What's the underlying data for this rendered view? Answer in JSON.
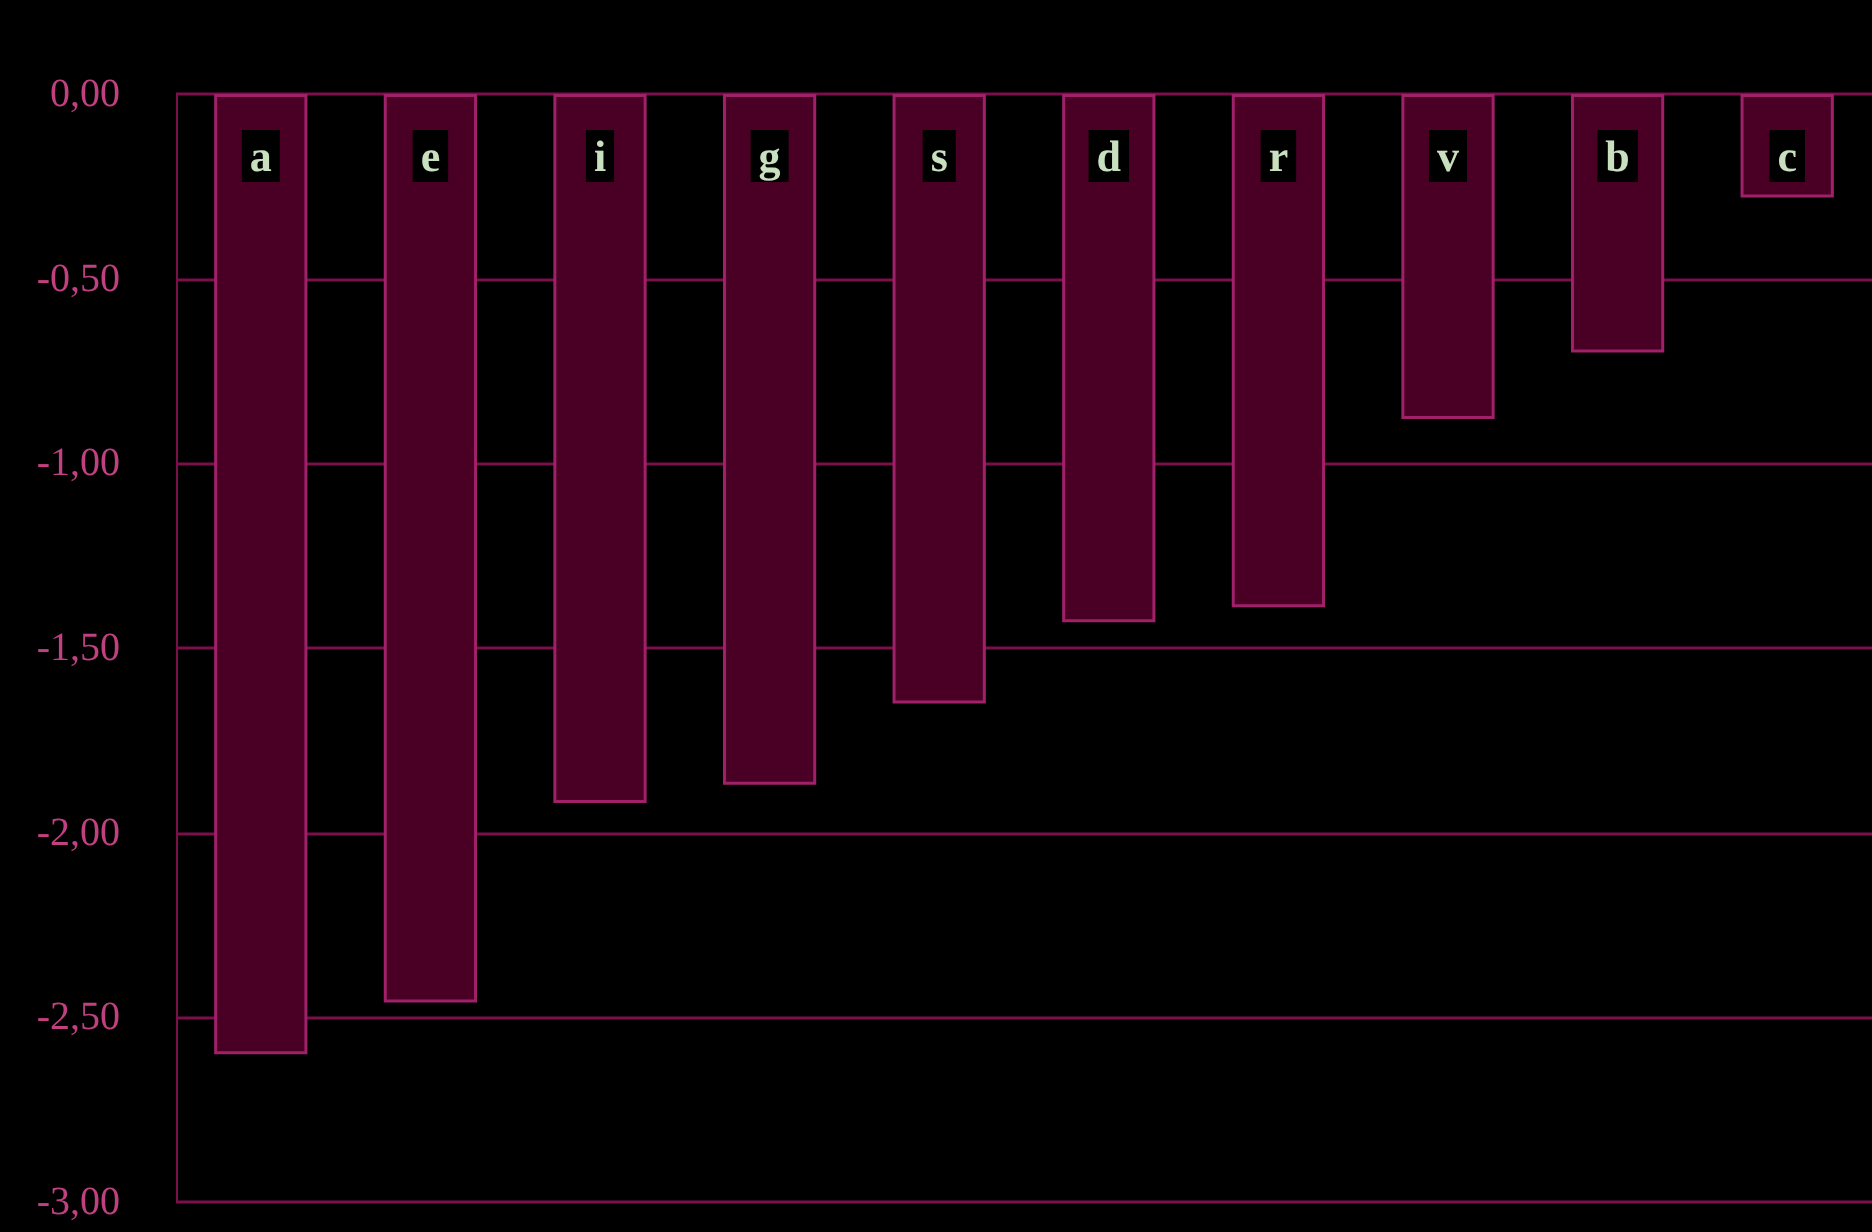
{
  "chart_data": {
    "type": "bar",
    "categories": [
      "a",
      "e",
      "i",
      "g",
      "s",
      "d",
      "r",
      "v",
      "b",
      "c"
    ],
    "values": [
      -2.6,
      -2.46,
      -1.92,
      -1.87,
      -1.65,
      -1.43,
      -1.39,
      -0.88,
      -0.7,
      -0.28
    ],
    "color": "#4a0024",
    "ylim": [
      -3,
      0
    ],
    "yticks": [
      {
        "value": 0,
        "label": "0,00"
      },
      {
        "value": -0.5,
        "label": "-0,50"
      },
      {
        "value": -1,
        "label": "-1,00"
      },
      {
        "value": -1.5,
        "label": "-1,50"
      },
      {
        "value": -2,
        "label": "-2,00"
      },
      {
        "value": -2.5,
        "label": "-2,50"
      },
      {
        "value": -3,
        "label": "-3,00"
      }
    ],
    "grid": "y"
  }
}
